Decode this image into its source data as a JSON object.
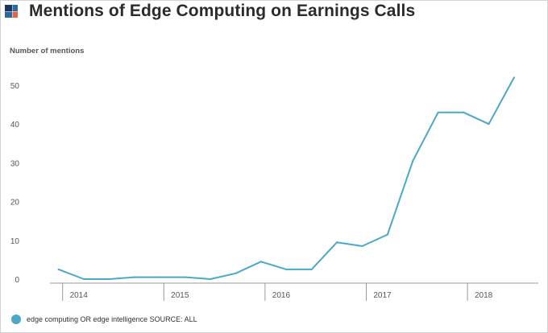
{
  "colors": {
    "series": "#4ba8c6",
    "axis": "#9a9a9a",
    "text": "#555555",
    "logo_dark": "#17375e",
    "logo_light": "#2c6aa0",
    "logo_accent": "#e8643c"
  },
  "logo": {
    "icon": "brand-logo-icon"
  },
  "chart_data": {
    "type": "line",
    "title": "Mentions of Edge Computing on Earnings Calls",
    "ylabel": "Number of mentions",
    "xlabel": "",
    "ylim": [
      0,
      50
    ],
    "yticks": [
      0,
      10,
      20,
      30,
      40,
      50
    ],
    "xlim": [
      2013.875,
      2018.7
    ],
    "xticks": [
      {
        "label": "2014",
        "value": 2014.0
      },
      {
        "label": "2015",
        "value": 2015.0
      },
      {
        "label": "2016",
        "value": 2016.0
      },
      {
        "label": "2017",
        "value": 2017.0
      },
      {
        "label": "2018",
        "value": 2018.0
      }
    ],
    "grid": false,
    "legend_position": "bottom-left",
    "series": [
      {
        "name": "edge computing OR edge intelligence SOURCE: ALL",
        "points": [
          {
            "x": 2013.96,
            "y": 2.5
          },
          {
            "x": 2014.21,
            "y": 0
          },
          {
            "x": 2014.46,
            "y": 0
          },
          {
            "x": 2014.71,
            "y": 0.5
          },
          {
            "x": 2014.96,
            "y": 0.5
          },
          {
            "x": 2015.21,
            "y": 0.5
          },
          {
            "x": 2015.46,
            "y": 0
          },
          {
            "x": 2015.71,
            "y": 1.5
          },
          {
            "x": 2015.96,
            "y": 4.5
          },
          {
            "x": 2016.21,
            "y": 2.5
          },
          {
            "x": 2016.46,
            "y": 2.5
          },
          {
            "x": 2016.71,
            "y": 9.5
          },
          {
            "x": 2016.96,
            "y": 8.5
          },
          {
            "x": 2017.21,
            "y": 11.5
          },
          {
            "x": 2017.46,
            "y": 30.5
          },
          {
            "x": 2017.71,
            "y": 43
          },
          {
            "x": 2017.96,
            "y": 43
          },
          {
            "x": 2018.21,
            "y": 40
          },
          {
            "x": 2018.46,
            "y": 52
          }
        ]
      }
    ]
  }
}
